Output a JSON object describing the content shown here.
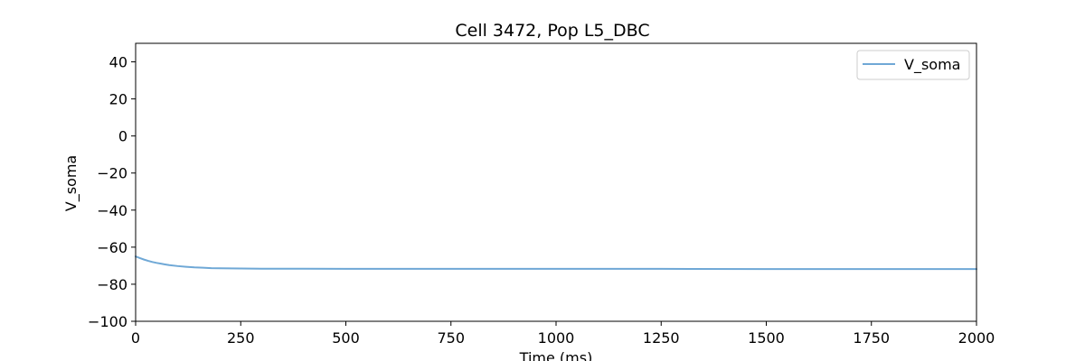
{
  "chart_data": {
    "type": "line",
    "title": "Cell 3472, Pop L5_DBC",
    "xlabel": "Time (ms)",
    "ylabel": "V_soma",
    "xlim": [
      0,
      2000
    ],
    "ylim": [
      -100,
      50
    ],
    "xticks": [
      0,
      250,
      500,
      750,
      1000,
      1250,
      1500,
      1750,
      2000
    ],
    "xtick_labels": [
      "0",
      "250",
      "500",
      "750",
      "1000",
      "1250",
      "1500",
      "1750",
      "2000"
    ],
    "yticks": [
      -100,
      -80,
      -60,
      -40,
      -20,
      0,
      20,
      40
    ],
    "ytick_labels": [
      "−100",
      "−80",
      "−60",
      "−40",
      "−20",
      "0",
      "20",
      "40"
    ],
    "grid": false,
    "legend_position": "top-right",
    "series": [
      {
        "name": "V_soma",
        "color": "#6fa8d6",
        "x": [
          0,
          10,
          20,
          30,
          40,
          50,
          60,
          70,
          80,
          100,
          120,
          140,
          160,
          180,
          200,
          250,
          300,
          400,
          500,
          750,
          1000,
          1250,
          1500,
          1750,
          2000
        ],
        "y": [
          -65.0,
          -65.9,
          -66.7,
          -67.4,
          -68.0,
          -68.5,
          -68.9,
          -69.3,
          -69.7,
          -70.2,
          -70.6,
          -70.9,
          -71.1,
          -71.3,
          -71.4,
          -71.5,
          -71.6,
          -71.6,
          -71.7,
          -71.7,
          -71.7,
          -71.7,
          -71.8,
          -71.8,
          -71.8
        ]
      }
    ]
  }
}
